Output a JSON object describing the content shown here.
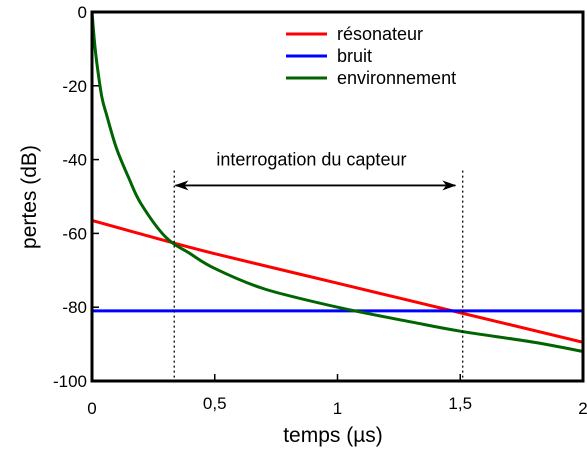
{
  "chart_data": {
    "type": "line",
    "title": "",
    "xlabel": "temps (µs)",
    "ylabel": "pertes (dB)",
    "xlim": [
      0,
      2
    ],
    "ylim": [
      -100,
      0
    ],
    "x_ticks": [
      {
        "value": 0,
        "label": "0"
      },
      {
        "value": 0.5,
        "label": "0,5"
      },
      {
        "value": 1,
        "label": "1"
      },
      {
        "value": 1.5,
        "label": "1,5"
      },
      {
        "value": 2,
        "label": "2"
      }
    ],
    "y_ticks": [
      {
        "value": 0,
        "label": "0"
      },
      {
        "value": -20,
        "label": "-20"
      },
      {
        "value": -40,
        "label": "-40"
      },
      {
        "value": -60,
        "label": "-60"
      },
      {
        "value": -80,
        "label": "-80"
      },
      {
        "value": -100,
        "label": "-100"
      }
    ],
    "grid": false,
    "legend_position": "top-right",
    "series": [
      {
        "name": "résonateur",
        "color": "#ff0000",
        "x": [
          0,
          0.3,
          0.5,
          1,
          1.5,
          2
        ],
        "y": [
          -56.5,
          -62,
          -65.5,
          -73.5,
          -81.5,
          -89.5
        ]
      },
      {
        "name": "bruit",
        "color": "#0000ff",
        "x": [
          0,
          2
        ],
        "y": [
          -81,
          -81
        ]
      },
      {
        "name": "environnement",
        "color": "#006400",
        "x": [
          0,
          0.01,
          0.02,
          0.04,
          0.06,
          0.1,
          0.15,
          0.2,
          0.3,
          0.4,
          0.5,
          0.7,
          1.0,
          1.3,
          1.5,
          1.8,
          2.0
        ],
        "y": [
          0,
          -8,
          -14,
          -23,
          -28,
          -37,
          -45,
          -52,
          -61,
          -65.5,
          -69.5,
          -75,
          -80,
          -84,
          -86.5,
          -89.5,
          -92
        ]
      }
    ],
    "annotations": [
      {
        "text": "interrogation du capteur",
        "type": "double-arrow",
        "x_from": 0.34,
        "x_to": 1.48,
        "y": -47
      },
      {
        "type": "vline",
        "x": 0.335,
        "style": "dotted"
      },
      {
        "type": "vline",
        "x": 1.51,
        "style": "dotted"
      }
    ]
  }
}
